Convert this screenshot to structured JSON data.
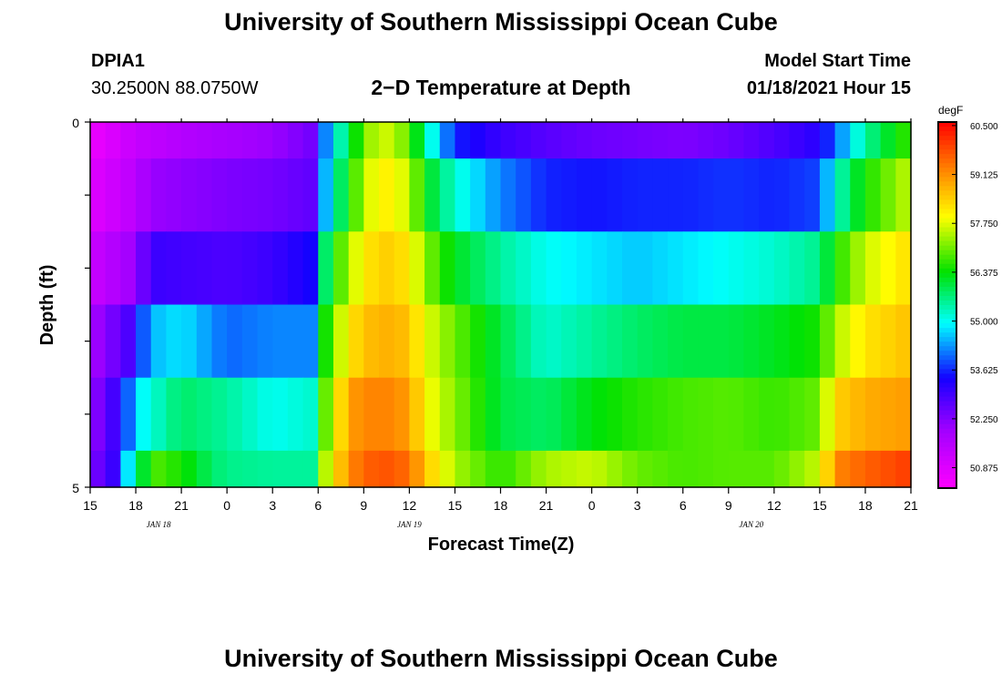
{
  "header": {
    "title": "University of Southern Mississippi Ocean Cube",
    "station": "DPIA1",
    "coordinates": "30.2500N 88.0750W",
    "subtitle": "2−D Temperature at Depth",
    "model_start_label": "Model Start Time",
    "model_start_value": "01/18/2021 Hour 15"
  },
  "footer": {
    "title": "University of Southern Mississippi Ocean Cube"
  },
  "chart_data": {
    "type": "heatmap",
    "title": "2−D Temperature at Depth",
    "xlabel": "Forecast Time(Z)",
    "ylabel": "Depth (ft)",
    "y_tick_labels": [
      "0",
      "5"
    ],
    "ylim": [
      0,
      5
    ],
    "x_tick_labels": [
      "15",
      "18",
      "21",
      "0",
      "3",
      "6",
      "9",
      "12",
      "15",
      "18",
      "21",
      "0",
      "3",
      "6",
      "9",
      "12",
      "15",
      "18",
      "21"
    ],
    "x_hours": [
      0,
      3,
      6,
      9,
      12,
      15,
      18,
      21,
      24,
      27,
      30,
      33,
      36,
      39,
      42,
      45,
      48,
      51,
      54
    ],
    "date_labels": [
      {
        "hour": 4.5,
        "label": "JAN 18"
      },
      {
        "hour": 21,
        "label": "JAN 19"
      },
      {
        "hour": 43.5,
        "label": "JAN 20"
      }
    ],
    "depth_rows": [
      "0",
      "1",
      "2",
      "3",
      "4",
      "5"
    ],
    "colorbar": {
      "unit": "degF",
      "min": 50.3,
      "max": 60.6,
      "tick_labels": [
        "60.500",
        "59.125",
        "57.750",
        "56.375",
        "55.000",
        "53.625",
        "52.250",
        "50.875"
      ],
      "tick_values": [
        60.5,
        59.125,
        57.75,
        56.375,
        55.0,
        53.625,
        52.25,
        50.875
      ]
    },
    "series": [
      {
        "depth": "0-0.5",
        "x": [
          0,
          3,
          6,
          9,
          12,
          14.5,
          15.5,
          17,
          19,
          21,
          22,
          24,
          27,
          30,
          33,
          36,
          39,
          42,
          45,
          48,
          49,
          51,
          54
        ],
        "values": [
          50.6,
          51.3,
          51.6,
          51.8,
          52.0,
          52.4,
          54.2,
          56.0,
          57.8,
          57.0,
          55.5,
          53.6,
          53.0,
          52.7,
          52.5,
          52.4,
          52.3,
          52.5,
          52.8,
          53.2,
          54.0,
          55.5,
          56.8
        ]
      },
      {
        "depth": "0.5-1.5",
        "x": [
          0,
          3,
          4,
          9,
          12,
          14.5,
          15.5,
          17,
          19,
          21,
          22,
          24,
          27,
          30,
          33,
          36,
          39,
          42,
          45,
          48,
          49,
          51,
          54
        ],
        "values": [
          50.8,
          51.5,
          52.0,
          52.3,
          52.4,
          52.6,
          54.5,
          56.5,
          58.2,
          57.6,
          56.3,
          55.2,
          54.2,
          53.6,
          53.5,
          53.6,
          53.6,
          53.7,
          53.6,
          53.8,
          55.2,
          56.5,
          57.6
        ]
      },
      {
        "depth": "1.5-2.5",
        "x": [
          0,
          3,
          4,
          9,
          12,
          14.5,
          15.5,
          17,
          19,
          21,
          22,
          24,
          27,
          30,
          33,
          36,
          39,
          42,
          45,
          48,
          49,
          51,
          54
        ],
        "values": [
          51.2,
          52.0,
          53.0,
          52.8,
          53.0,
          53.4,
          55.8,
          57.5,
          58.5,
          58.2,
          57.2,
          56.2,
          55.5,
          55.0,
          54.8,
          54.6,
          54.8,
          55.0,
          55.2,
          55.6,
          56.5,
          57.6,
          58.3
        ]
      },
      {
        "depth": "2.5-3.5",
        "x": [
          0,
          2.5,
          4,
          6,
          9,
          12,
          14.5,
          15.5,
          17,
          19,
          21,
          22,
          24,
          27,
          30,
          33,
          36,
          39,
          42,
          45,
          48,
          49,
          51,
          54
        ],
        "values": [
          51.8,
          52.8,
          54.5,
          54.8,
          54.0,
          54.2,
          54.2,
          56.5,
          58.2,
          58.8,
          58.6,
          57.8,
          57.0,
          56.0,
          55.2,
          55.5,
          55.8,
          56.0,
          56.0,
          56.2,
          56.5,
          57.4,
          58.2,
          58.6
        ]
      },
      {
        "depth": "3.5-4.5",
        "x": [
          0,
          2,
          3,
          6,
          9,
          12,
          14.5,
          15.5,
          17,
          19,
          21,
          22,
          24,
          27,
          30,
          33,
          36,
          39,
          42,
          45,
          48,
          49,
          51,
          54
        ],
        "values": [
          52.0,
          53.2,
          54.8,
          55.8,
          55.5,
          55.0,
          55.2,
          57.0,
          59.0,
          59.3,
          59.0,
          58.0,
          57.2,
          56.0,
          55.8,
          56.3,
          56.6,
          56.8,
          56.9,
          56.7,
          57.0,
          58.4,
          58.8,
          59.0
        ]
      },
      {
        "depth": "4.5-5",
        "x": [
          0,
          1,
          2,
          3,
          4.5,
          6,
          8,
          9,
          12,
          14.5,
          15.5,
          17,
          19,
          21,
          22,
          24,
          27,
          30,
          33,
          36,
          39,
          42,
          45,
          48,
          49,
          51,
          54
        ],
        "values": [
          52.8,
          52.2,
          53.8,
          55.8,
          56.8,
          56.5,
          55.8,
          55.6,
          55.5,
          55.5,
          57.5,
          59.2,
          59.8,
          59.5,
          58.6,
          57.4,
          56.6,
          57.4,
          57.6,
          57.0,
          56.8,
          56.9,
          56.9,
          57.6,
          59.2,
          59.6,
          60.0
        ]
      }
    ]
  }
}
